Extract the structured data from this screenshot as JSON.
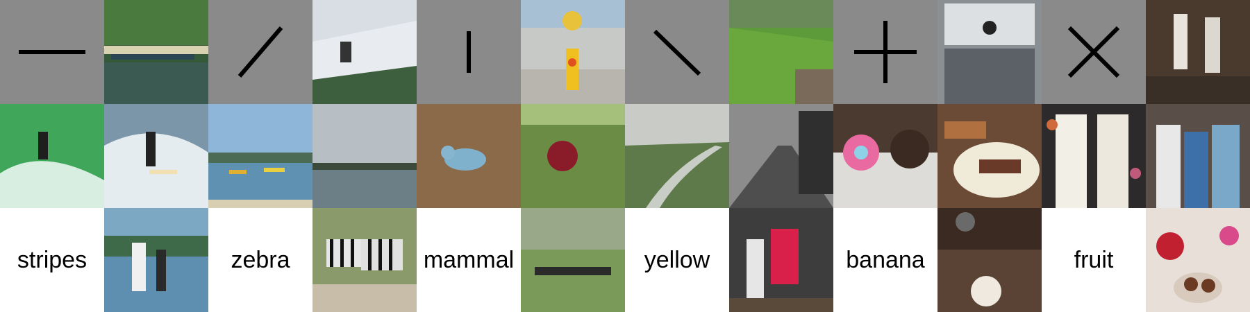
{
  "row1": {
    "symbols": [
      {
        "icon": "horizontal-line-icon"
      },
      {
        "icon": "diagonal-slash-icon"
      },
      {
        "icon": "vertical-line-icon"
      },
      {
        "icon": "backslash-icon"
      },
      {
        "icon": "plus-icon"
      },
      {
        "icon": "cross-icon"
      }
    ],
    "photos": [
      "river boat",
      "snowboarder on ramp",
      "yellow fire hydrant",
      "grassy hillside",
      "bathroom sink",
      "people dancing"
    ]
  },
  "row2": {
    "photos": [
      "surfer green wave",
      "surfer white wave",
      "bay with boats",
      "calm lake",
      "blue bird on ground",
      "red flower",
      "river valley",
      "city street black and white",
      "donuts",
      "plated food",
      "two women in dresses",
      "family portrait"
    ]
  },
  "row3": {
    "words": [
      "stripes",
      "zebra",
      "mammal",
      "yellow",
      "banana",
      "fruit"
    ],
    "photos": [
      "surfers with board",
      "zebras",
      "cattle in field",
      "woman at kiosk",
      "dining table",
      "fruit dessert"
    ]
  },
  "colors": {
    "symbol_bg": "#8a8a8a",
    "word_bg": "#ffffff"
  }
}
